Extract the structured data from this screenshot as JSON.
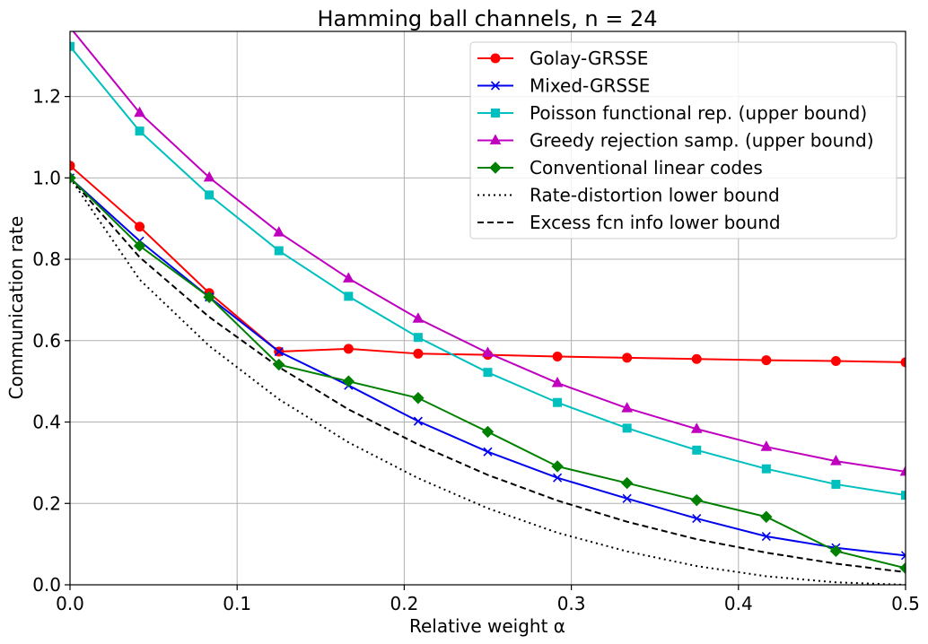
{
  "chart_data": {
    "type": "line",
    "title": "Hamming ball channels, n = 24",
    "xlabel": "Relative weight α",
    "ylabel": "Communication rate",
    "xlim": [
      0,
      0.5
    ],
    "ylim": [
      0,
      1.36
    ],
    "grid": true,
    "legend_position": "top-right",
    "x_ticks": [
      0,
      0.1,
      0.2,
      0.3,
      0.4,
      0.5
    ],
    "x_tick_labels": [
      "0.0",
      "0.1",
      "0.2",
      "0.3",
      "0.4",
      "0.5"
    ],
    "y_ticks": [
      0,
      0.2,
      0.4,
      0.6,
      0.8,
      1.0,
      1.2
    ],
    "y_tick_labels": [
      "0.0",
      "0.2",
      "0.4",
      "0.6",
      "0.8",
      "1.0",
      "1.2"
    ],
    "x": [
      0.0,
      0.04167,
      0.08333,
      0.125,
      0.16667,
      0.20833,
      0.25,
      0.29167,
      0.33333,
      0.375,
      0.41667,
      0.45833,
      0.5
    ],
    "series": [
      {
        "name": "Golay-GRSSE",
        "color": "#ff0000",
        "marker": "circle",
        "dash": "solid",
        "values": [
          1.03,
          0.88,
          0.717,
          0.573,
          0.58,
          0.568,
          0.565,
          0.561,
          0.558,
          0.555,
          0.552,
          0.55,
          0.547
        ]
      },
      {
        "name": "Mixed-GRSSE",
        "color": "#0000ee",
        "marker": "x",
        "dash": "solid",
        "values": [
          1.0,
          0.845,
          0.707,
          0.573,
          0.49,
          0.402,
          0.327,
          0.263,
          0.212,
          0.163,
          0.119,
          0.091,
          0.072
        ]
      },
      {
        "name": "Poisson functional rep. (upper bound)",
        "color": "#00bfbf",
        "marker": "square",
        "dash": "solid",
        "values": [
          1.323,
          1.115,
          0.958,
          0.821,
          0.709,
          0.608,
          0.522,
          0.448,
          0.385,
          0.331,
          0.285,
          0.247,
          0.22
        ]
      },
      {
        "name": "Greedy rejection samp. (upper bound)",
        "color": "#bf00bf",
        "marker": "triangle",
        "dash": "solid",
        "values": [
          1.37,
          1.16,
          1.001,
          0.866,
          0.753,
          0.654,
          0.57,
          0.496,
          0.434,
          0.383,
          0.339,
          0.304,
          0.278
        ]
      },
      {
        "name": "Conventional linear codes",
        "color": "#008000",
        "marker": "diamond",
        "dash": "solid",
        "values": [
          1.0,
          0.833,
          0.707,
          0.541,
          0.5,
          0.459,
          0.376,
          0.291,
          0.25,
          0.208,
          0.167,
          0.083,
          0.041
        ]
      },
      {
        "name": "Rate-distortion lower bound",
        "color": "#000000",
        "marker": "none",
        "dash": "dotted",
        "values": [
          1.0,
          0.75,
          0.587,
          0.456,
          0.35,
          0.262,
          0.188,
          0.128,
          0.082,
          0.046,
          0.021,
          0.006,
          0.0
        ]
      },
      {
        "name": "Excess fcn info lower bound",
        "color": "#000000",
        "marker": "none",
        "dash": "dashed",
        "values": [
          1.0,
          0.805,
          0.658,
          0.535,
          0.431,
          0.345,
          0.27,
          0.207,
          0.155,
          0.112,
          0.079,
          0.052,
          0.031
        ]
      }
    ]
  }
}
